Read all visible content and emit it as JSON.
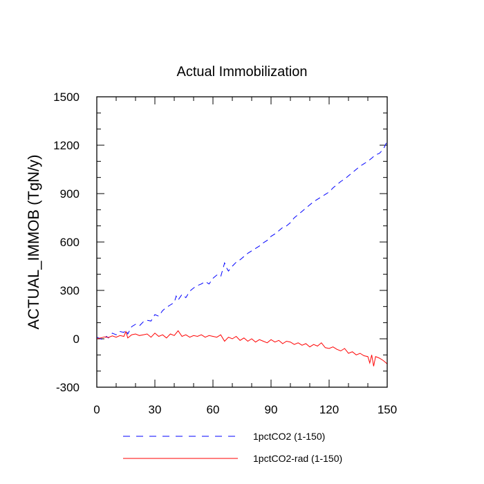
{
  "chart_data": {
    "type": "line",
    "title": "Actual Immobilization",
    "xlabel": "",
    "ylabel": "ACTUAL_IMMOB  (TgN/y)",
    "xlim": [
      0,
      150
    ],
    "ylim": [
      -300,
      1500
    ],
    "xticks": [
      0,
      30,
      60,
      90,
      120,
      150
    ],
    "yticks": [
      -300,
      0,
      300,
      600,
      900,
      1200,
      1500
    ],
    "xtick_labels": [
      "0",
      "30",
      "60",
      "90",
      "120",
      "150"
    ],
    "ytick_labels": [
      "-300",
      "0",
      "300",
      "600",
      "900",
      "1200",
      "1500"
    ],
    "grid": false,
    "legend_position": "bottom",
    "series": [
      {
        "name": "1pctCO2 (1-150)",
        "color": "#0000ff",
        "style": "dashed",
        "x": [
          0,
          2,
          3,
          4,
          5,
          6,
          8,
          10,
          12,
          14,
          15,
          16,
          18,
          20,
          22,
          24,
          26,
          28,
          30,
          32,
          34,
          36,
          38,
          40,
          41,
          42,
          44,
          46,
          48,
          50,
          52,
          54,
          56,
          58,
          60,
          62,
          64,
          66,
          67,
          68,
          70,
          72,
          74,
          76,
          78,
          80,
          82,
          84,
          86,
          88,
          90,
          92,
          94,
          96,
          98,
          100,
          102,
          104,
          106,
          108,
          110,
          112,
          114,
          116,
          118,
          120,
          122,
          124,
          126,
          128,
          130,
          132,
          134,
          136,
          138,
          140,
          142,
          144,
          146,
          148,
          150
        ],
        "values": [
          10,
          0,
          -5,
          5,
          15,
          5,
          35,
          25,
          45,
          40,
          55,
          30,
          75,
          90,
          80,
          105,
          115,
          110,
          150,
          140,
          175,
          195,
          210,
          225,
          265,
          240,
          275,
          255,
          295,
          315,
          330,
          340,
          355,
          340,
          375,
          395,
          385,
          470,
          440,
          420,
          450,
          475,
          490,
          510,
          530,
          545,
          560,
          575,
          595,
          610,
          635,
          650,
          670,
          690,
          700,
          720,
          750,
          770,
          790,
          810,
          830,
          850,
          865,
          880,
          895,
          910,
          935,
          955,
          975,
          990,
          1010,
          1030,
          1050,
          1070,
          1085,
          1100,
          1120,
          1140,
          1150,
          1175,
          1225
        ]
      },
      {
        "name": "1pctCO2-rad (1-150)",
        "color": "#ff0000",
        "style": "solid",
        "x": [
          0,
          2,
          4,
          6,
          8,
          10,
          12,
          14,
          15,
          16,
          18,
          20,
          22,
          24,
          26,
          28,
          30,
          32,
          34,
          36,
          38,
          40,
          42,
          44,
          46,
          48,
          50,
          52,
          54,
          56,
          58,
          60,
          62,
          64,
          66,
          68,
          70,
          72,
          74,
          76,
          78,
          80,
          82,
          84,
          86,
          88,
          90,
          92,
          94,
          96,
          98,
          100,
          102,
          104,
          106,
          108,
          110,
          112,
          114,
          116,
          118,
          120,
          122,
          124,
          126,
          128,
          130,
          132,
          134,
          136,
          138,
          140,
          141,
          142,
          143,
          144,
          146,
          148,
          150
        ],
        "values": [
          0,
          5,
          12,
          8,
          18,
          10,
          20,
          15,
          45,
          5,
          25,
          30,
          20,
          25,
          30,
          10,
          35,
          15,
          25,
          5,
          30,
          20,
          50,
          15,
          25,
          10,
          20,
          15,
          25,
          10,
          20,
          15,
          10,
          25,
          -15,
          10,
          0,
          15,
          -10,
          5,
          -15,
          0,
          -20,
          -5,
          -15,
          -25,
          -5,
          -20,
          -10,
          -30,
          -15,
          -20,
          -35,
          -25,
          -40,
          -30,
          -50,
          -35,
          -45,
          -25,
          -55,
          -60,
          -50,
          -65,
          -75,
          -60,
          -90,
          -80,
          -100,
          -90,
          -105,
          -110,
          -150,
          -100,
          -170,
          -110,
          -120,
          -135,
          -155
        ]
      }
    ]
  }
}
